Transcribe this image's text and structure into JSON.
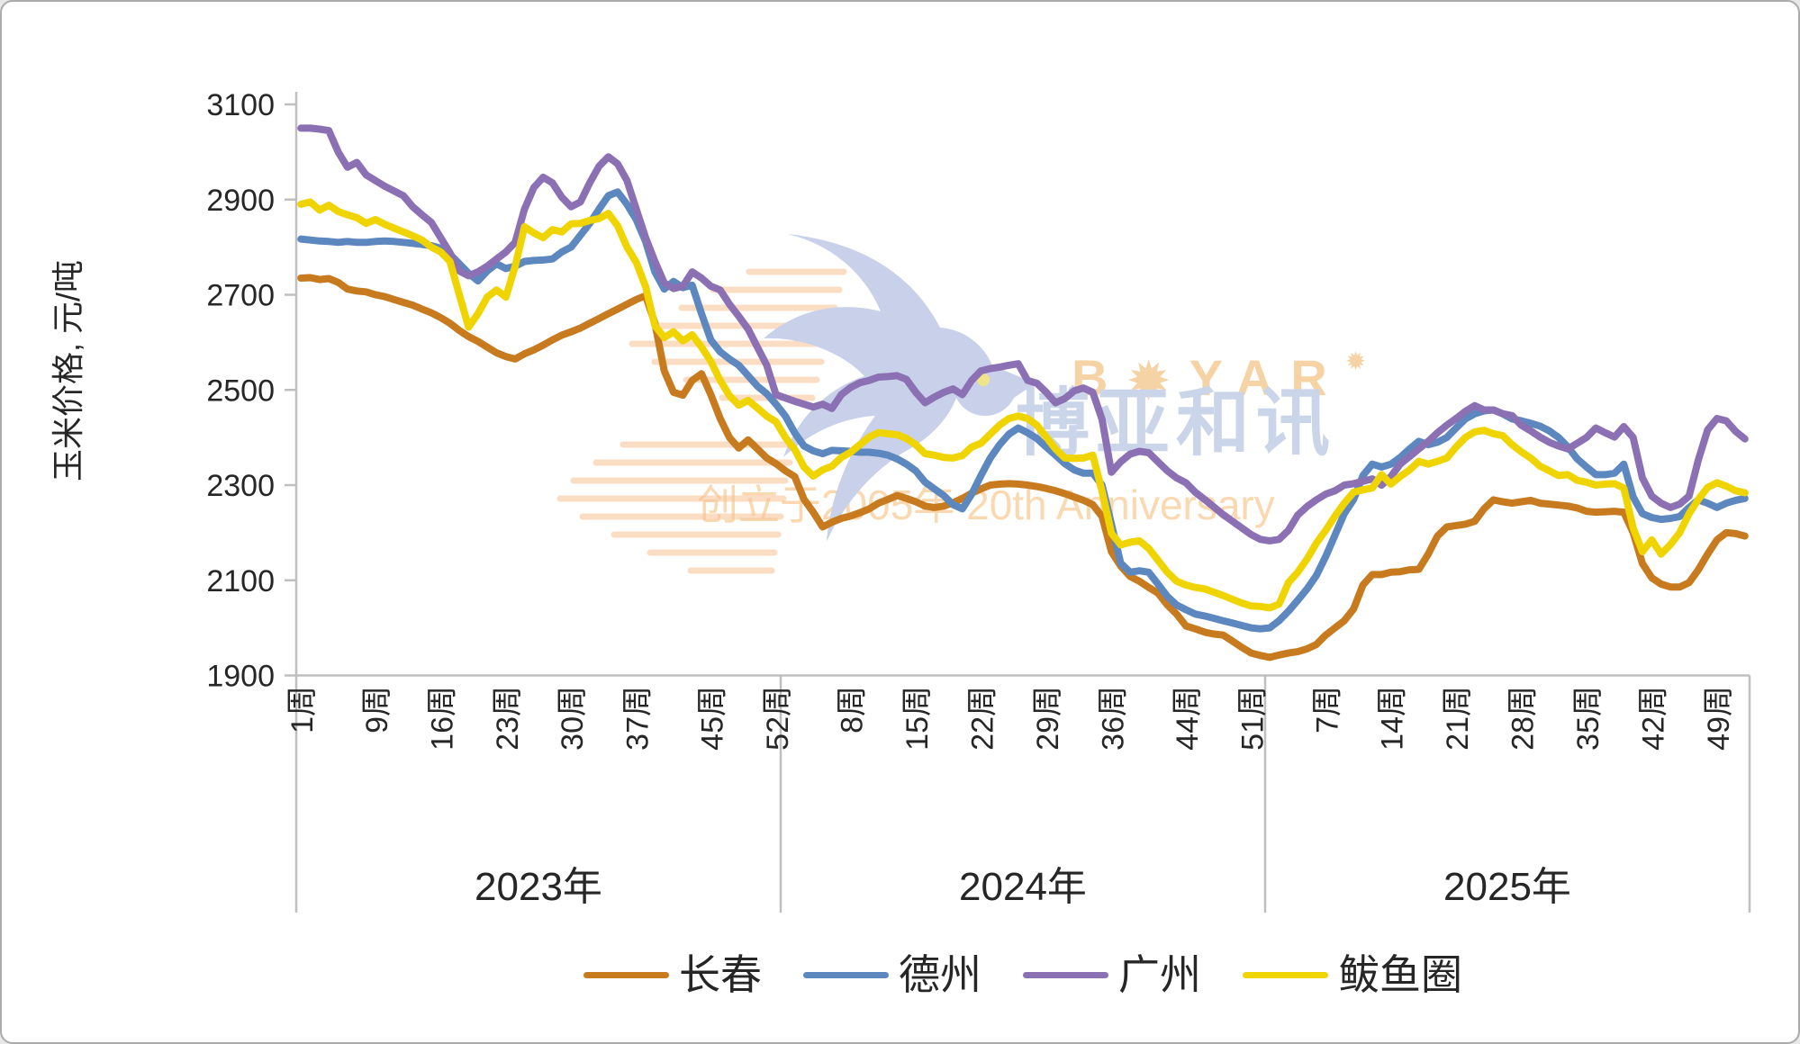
{
  "y_axis": {
    "title": "玉米价格, 元/吨",
    "min": 1900,
    "max": 3100,
    "step": 200,
    "tick_labels": [
      "3100",
      "2900",
      "2700",
      "2500",
      "2300",
      "2100",
      "1900"
    ]
  },
  "x_axis": {
    "week_suffix": "周",
    "years": [
      {
        "label": "2023年",
        "tick_weeks": [
          1,
          9,
          16,
          23,
          30,
          37,
          45,
          52
        ]
      },
      {
        "label": "2024年",
        "tick_weeks": [
          8,
          15,
          22,
          29,
          36,
          44,
          51
        ]
      },
      {
        "label": "2025年",
        "tick_weeks": [
          7,
          14,
          21,
          28,
          35,
          42,
          49
        ]
      }
    ]
  },
  "watermark": {
    "brand_b": "B",
    "brand_rest": "YAR",
    "star": "✹",
    "brand_cn": "博亚和讯",
    "tagline": "创立于2005年 20th Anniversary",
    "brand_color": "#f6d3a4",
    "cn_color": "#cbd5ea",
    "tagline_color": "#fad8b0",
    "bird_color": "#c8d1e9",
    "speedline_color": "#f6c393"
  },
  "chart_data": {
    "type": "line",
    "title": "",
    "ylabel": "玉米价格, 元/吨",
    "ylim": [
      1900,
      3100
    ],
    "x_unit": "week",
    "years": [
      "2023",
      "2024",
      "2025"
    ],
    "weeks_per_year": 52,
    "grid": false,
    "legend_position": "bottom",
    "series": [
      {
        "name": "长春",
        "color": "#c77b1e",
        "values_2023": [
          2735,
          2736,
          2732,
          2734,
          2726,
          2712,
          2708,
          2706,
          2700,
          2696,
          2690,
          2684,
          2678,
          2670,
          2662,
          2652,
          2640,
          2625,
          2612,
          2602,
          2590,
          2578,
          2570,
          2565,
          2576,
          2584,
          2594,
          2605,
          2615,
          2622,
          2630,
          2640,
          2650,
          2660,
          2670,
          2680,
          2690,
          2698,
          2640,
          2540,
          2495,
          2489,
          2520,
          2534,
          2490,
          2440,
          2400,
          2378,
          2395,
          2376,
          2357,
          2345
        ],
        "values_2024": [
          2330,
          2318,
          2270,
          2243,
          2212,
          2222,
          2230,
          2235,
          2242,
          2250,
          2262,
          2270,
          2278,
          2272,
          2265,
          2256,
          2253,
          2256,
          2263,
          2272,
          2283,
          2292,
          2300,
          2302,
          2303,
          2302,
          2300,
          2297,
          2293,
          2288,
          2282,
          2275,
          2268,
          2259,
          2234,
          2160,
          2130,
          2108,
          2098,
          2085,
          2073,
          2048,
          2029,
          2004,
          1998,
          1991,
          1987,
          1985,
          1972,
          1959,
          1947,
          1942
        ],
        "values_2025": [
          1938,
          1943,
          1947,
          1950,
          1956,
          1965,
          1985,
          2000,
          2015,
          2040,
          2090,
          2112,
          2112,
          2117,
          2118,
          2122,
          2123,
          2155,
          2193,
          2212,
          2215,
          2218,
          2224,
          2250,
          2269,
          2265,
          2262,
          2265,
          2268,
          2262,
          2260,
          2258,
          2256,
          2252,
          2245,
          2243,
          2244,
          2245,
          2243,
          2200,
          2135,
          2105,
          2092,
          2086,
          2086,
          2095,
          2122,
          2155,
          2185,
          2200,
          2198,
          2193
        ]
      },
      {
        "name": "德州",
        "color": "#5c88bf",
        "values_2023": [
          2817,
          2815,
          2813,
          2812,
          2810,
          2812,
          2810,
          2810,
          2812,
          2813,
          2812,
          2810,
          2808,
          2806,
          2803,
          2798,
          2785,
          2765,
          2745,
          2729,
          2750,
          2765,
          2755,
          2760,
          2770,
          2772,
          2773,
          2775,
          2790,
          2800,
          2825,
          2850,
          2880,
          2908,
          2916,
          2890,
          2858,
          2812,
          2748,
          2712,
          2728,
          2715,
          2720,
          2660,
          2605,
          2580,
          2565,
          2552,
          2530,
          2508,
          2492,
          2470
        ],
        "values_2024": [
          2445,
          2410,
          2382,
          2372,
          2366,
          2373,
          2372,
          2371,
          2369,
          2369,
          2367,
          2363,
          2355,
          2344,
          2330,
          2306,
          2292,
          2278,
          2259,
          2250,
          2281,
          2320,
          2357,
          2385,
          2407,
          2420,
          2410,
          2398,
          2380,
          2363,
          2345,
          2332,
          2325,
          2325,
          2300,
          2218,
          2136,
          2117,
          2120,
          2117,
          2092,
          2066,
          2048,
          2038,
          2029,
          2025,
          2020,
          2015,
          2010,
          2005,
          2000,
          1998
        ],
        "values_2025": [
          2000,
          2015,
          2035,
          2058,
          2082,
          2110,
          2150,
          2195,
          2240,
          2270,
          2320,
          2344,
          2338,
          2344,
          2358,
          2376,
          2392,
          2385,
          2390,
          2400,
          2420,
          2439,
          2450,
          2456,
          2458,
          2450,
          2439,
          2435,
          2430,
          2424,
          2414,
          2400,
          2380,
          2355,
          2338,
          2322,
          2322,
          2325,
          2344,
          2275,
          2240,
          2232,
          2228,
          2230,
          2234,
          2253,
          2269,
          2262,
          2253,
          2262,
          2268,
          2272
        ]
      },
      {
        "name": "广州",
        "color": "#8c70b4",
        "values_2023": [
          3050,
          3050,
          3048,
          3045,
          3000,
          2968,
          2978,
          2952,
          2940,
          2928,
          2918,
          2908,
          2885,
          2868,
          2852,
          2820,
          2788,
          2750,
          2740,
          2748,
          2760,
          2775,
          2790,
          2810,
          2880,
          2925,
          2947,
          2935,
          2905,
          2885,
          2895,
          2935,
          2970,
          2990,
          2975,
          2940,
          2880,
          2820,
          2770,
          2725,
          2713,
          2718,
          2748,
          2735,
          2718,
          2710,
          2680,
          2655,
          2628,
          2590,
          2552,
          2490
        ],
        "values_2024": [
          2483,
          2476,
          2470,
          2464,
          2470,
          2461,
          2490,
          2505,
          2515,
          2520,
          2527,
          2528,
          2530,
          2522,
          2495,
          2473,
          2485,
          2495,
          2502,
          2490,
          2520,
          2540,
          2545,
          2548,
          2552,
          2555,
          2520,
          2514,
          2495,
          2473,
          2482,
          2498,
          2504,
          2495,
          2438,
          2327,
          2349,
          2365,
          2371,
          2368,
          2349,
          2330,
          2315,
          2305,
          2285,
          2270,
          2254,
          2238,
          2224,
          2210,
          2196,
          2186
        ],
        "values_2025": [
          2183,
          2186,
          2205,
          2237,
          2255,
          2269,
          2281,
          2288,
          2300,
          2303,
          2308,
          2313,
          2300,
          2318,
          2344,
          2360,
          2376,
          2392,
          2410,
          2426,
          2440,
          2455,
          2467,
          2458,
          2458,
          2450,
          2446,
          2426,
          2414,
          2401,
          2390,
          2382,
          2376,
          2388,
          2400,
          2420,
          2410,
          2401,
          2423,
          2400,
          2315,
          2277,
          2262,
          2253,
          2260,
          2277,
          2353,
          2416,
          2440,
          2435,
          2413,
          2397
        ]
      },
      {
        "name": "鲅鱼圈",
        "color": "#efd400",
        "values_2023": [
          2890,
          2895,
          2878,
          2888,
          2875,
          2868,
          2862,
          2850,
          2858,
          2848,
          2840,
          2832,
          2824,
          2815,
          2800,
          2790,
          2770,
          2700,
          2632,
          2660,
          2695,
          2710,
          2695,
          2760,
          2843,
          2830,
          2820,
          2837,
          2832,
          2849,
          2850,
          2856,
          2860,
          2871,
          2845,
          2800,
          2768,
          2717,
          2635,
          2610,
          2622,
          2603,
          2616,
          2590,
          2560,
          2520,
          2488,
          2468,
          2478,
          2462,
          2445,
          2433
        ],
        "values_2024": [
          2400,
          2375,
          2338,
          2319,
          2332,
          2340,
          2358,
          2369,
          2385,
          2401,
          2410,
          2408,
          2406,
          2398,
          2385,
          2366,
          2363,
          2358,
          2357,
          2362,
          2380,
          2388,
          2407,
          2426,
          2440,
          2445,
          2440,
          2426,
          2401,
          2376,
          2357,
          2356,
          2357,
          2363,
          2287,
          2199,
          2174,
          2180,
          2183,
          2167,
          2142,
          2117,
          2098,
          2090,
          2085,
          2082,
          2075,
          2068,
          2060,
          2052,
          2046,
          2045
        ],
        "values_2025": [
          2042,
          2050,
          2095,
          2117,
          2145,
          2178,
          2205,
          2235,
          2262,
          2285,
          2290,
          2294,
          2322,
          2302,
          2318,
          2332,
          2350,
          2344,
          2350,
          2357,
          2380,
          2400,
          2412,
          2415,
          2408,
          2404,
          2385,
          2370,
          2357,
          2340,
          2330,
          2320,
          2322,
          2310,
          2306,
          2300,
          2302,
          2303,
          2294,
          2210,
          2160,
          2185,
          2155,
          2175,
          2200,
          2240,
          2270,
          2295,
          2305,
          2298,
          2288,
          2284
        ]
      }
    ]
  },
  "style": {
    "axis_color": "#bfbfbf",
    "text_color": "#262626",
    "line_width": 8
  }
}
